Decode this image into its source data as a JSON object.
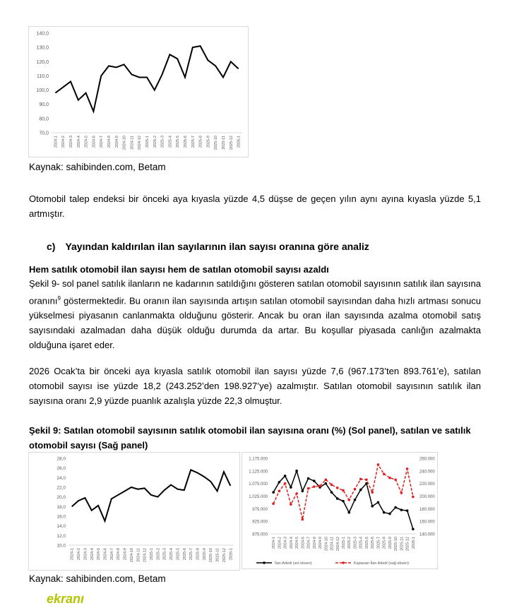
{
  "chart_data": [
    {
      "type": "line",
      "categories": [
        "2024-1",
        "2024-2",
        "2024-3",
        "2024-4",
        "2024-5",
        "2024-6",
        "2024-7",
        "2024-8",
        "2024-9",
        "2024-10",
        "2024-11",
        "2024-12",
        "2025-1",
        "2025-2",
        "2025-3",
        "2025-4",
        "2025-5",
        "2025-6",
        "2025-7",
        "2025-8",
        "2025-9",
        "2025-10",
        "2025-11",
        "2025-12",
        "2026-1"
      ],
      "series": [
        {
          "color": "#000000",
          "values": [
            98,
            102,
            106,
            93,
            98,
            85,
            110,
            117,
            116,
            118,
            111,
            109,
            109,
            100,
            111,
            125,
            122,
            109,
            130,
            131,
            121,
            117,
            109,
            120,
            115
          ]
        }
      ],
      "ylim": [
        70,
        140
      ],
      "yticks": [
        {
          "value": 70,
          "label": "70,0"
        },
        {
          "value": 80,
          "label": "80,0"
        },
        {
          "value": 90,
          "label": "90,0"
        },
        {
          "value": 100,
          "label": "100,0"
        },
        {
          "value": 110,
          "label": "110,0"
        },
        {
          "value": 120,
          "label": "120,0"
        },
        {
          "value": 130,
          "label": "130,0"
        },
        {
          "value": 140,
          "label": "140,0"
        }
      ]
    },
    {
      "type": "line",
      "categories": [
        "2024-1",
        "2024-2",
        "2024-3",
        "2024-4",
        "2024-5",
        "2024-6",
        "2024-7",
        "2024-8",
        "2024-9",
        "2024-10",
        "2024-11",
        "2024-12",
        "2025-1",
        "2025-2",
        "2025-3",
        "2025-4",
        "2025-5",
        "2025-6",
        "2025-7",
        "2025-8",
        "2025-9",
        "2025-10",
        "2025-11",
        "2025-12",
        "2026-1"
      ],
      "series": [
        {
          "color": "#000000",
          "values": [
            18,
            19.2,
            19.8,
            17.2,
            18.2,
            15,
            19.6,
            20.4,
            21.2,
            22,
            21.6,
            21.8,
            20.4,
            20,
            21.4,
            22.5,
            21.6,
            21.4,
            25.6,
            25,
            24.2,
            23.2,
            21.2,
            25.2,
            22.3
          ]
        }
      ],
      "ylim": [
        10,
        28
      ],
      "yticks": [
        {
          "value": 10,
          "label": "10,0"
        },
        {
          "value": 12,
          "label": "12,0"
        },
        {
          "value": 14,
          "label": "14,0"
        },
        {
          "value": 16,
          "label": "16,0"
        },
        {
          "value": 18,
          "label": "18,0"
        },
        {
          "value": 20,
          "label": "20,0"
        },
        {
          "value": 22,
          "label": "22,0"
        },
        {
          "value": 24,
          "label": "24,0"
        },
        {
          "value": 26,
          "label": "26,0"
        },
        {
          "value": 28,
          "label": "28,0"
        }
      ]
    },
    {
      "type": "line",
      "categories": [
        "2024-1",
        "2024-2",
        "2024-3",
        "2024-4",
        "2024-5",
        "2024-6",
        "2024-7",
        "2024-8",
        "2024-9",
        "2024-10",
        "2024-11",
        "2024-12",
        "2025-1",
        "2025-2",
        "2025-3",
        "2025-4",
        "2025-5",
        "2025-6",
        "2025-7",
        "2025-8",
        "2025-9",
        "2025-10",
        "2025-11",
        "2025-12",
        "2026-1"
      ],
      "series": [
        {
          "name": "İlan Adedi (sol eksen)",
          "color": "#000000",
          "line_style": "solid",
          "values": [
            1040000,
            1080000,
            1105000,
            1060000,
            1125000,
            1045000,
            1095000,
            1085000,
            1060000,
            1075000,
            1040000,
            1015000,
            1005000,
            960000,
            1010000,
            1050000,
            1075000,
            985000,
            1000000,
            960000,
            955000,
            980000,
            970000,
            967173,
            893761
          ]
        },
        {
          "name": "Kapanan İlan Adedi (sağ eksen)",
          "color": "#e02020",
          "line_style": "dashed",
          "axis": "y2",
          "values": [
            188000,
            208000,
            220000,
            187000,
            204000,
            163000,
            212000,
            215000,
            216000,
            226000,
            218000,
            213000,
            209000,
            194000,
            211000,
            227000,
            226000,
            206000,
            250000,
            235000,
            229000,
            226000,
            205000,
            243252,
            198927
          ]
        }
      ],
      "markers": true,
      "legend": "bottom",
      "ylim": [
        875000,
        1175000
      ],
      "yticks": [
        {
          "value": 875000,
          "label": "875.000"
        },
        {
          "value": 925000,
          "label": "925.000"
        },
        {
          "value": 975000,
          "label": "975.000"
        },
        {
          "value": 1025000,
          "label": "1.025.000"
        },
        {
          "value": 1075000,
          "label": "1.075.000"
        },
        {
          "value": 1125000,
          "label": "1.125.000"
        },
        {
          "value": 1175000,
          "label": "1.175.000"
        }
      ],
      "y2lim": [
        140000,
        260000
      ],
      "y2ticks": [
        {
          "value": 140000,
          "label": "140.000"
        },
        {
          "value": 160000,
          "label": "160.000"
        },
        {
          "value": 180000,
          "label": "180.000"
        },
        {
          "value": 200000,
          "label": "200.000"
        },
        {
          "value": 220000,
          "label": "220.000"
        },
        {
          "value": 240000,
          "label": "240.000"
        },
        {
          "value": 260000,
          "label": "260.000"
        }
      ]
    }
  ],
  "source_1": "Kaynak: sahibinden.com, Betam",
  "paragraph_1": "Otomobil talep endeksi bir önceki aya kıyasla yüzde 4,5 düşse de geçen yılın aynı ayına kıyasla yüzde 5,1 artmıştır.",
  "section": {
    "marker": "c)",
    "title": "Yayından kaldırılan ilan sayılarının ilan sayısı oranına göre analiz"
  },
  "subheading": "Hem satılık otomobil ilan sayısı hem de satılan otomobil sayısı azaldı",
  "paragraph_2": {
    "before": "Şekil 9- sol panel satılık ilanların ne kadarının satıldığını gösteren satılan otomobil sayısının satılık ilan sayısına oranını",
    "footnote_ref": "9",
    "after": " göstermektedir. Bu oranın ilan sayısında artışın satılan otomobil sayısından daha hızlı artması sonucu yükselmesi piyasanın canlanmakta olduğunu gösterir. Ancak bu oran ilan sayısında azalma otomobil satış sayısındaki azalmadan daha düşük olduğu durumda da artar. Bu koşullar piyasada canlığın azalmakta olduğuna işaret eder."
  },
  "paragraph_3": "2026 Ocak’ta bir önceki aya kıyasla satılık otomobil ilan sayısı yüzde 7,6 (967.173’ten 893.761’e), satılan otomobil sayısı ise yüzde 18,2 (243.252’den 198.927’ye) azalmıştır. Satılan otomobil sayısının satılık ilan sayısına oranı 2,9 yüzde puanlık azalışla yüzde 22,3 olmuştur.",
  "figure_caption": "Şekil 9: Satılan otomobil sayısının satılık otomobil ilan sayısına oranı (%) (Sol panel), satılan ve satılık otomobil sayısı (Sağ panel)",
  "source_2": "Kaynak: sahibinden.com, Betam",
  "logo": "ekranı"
}
